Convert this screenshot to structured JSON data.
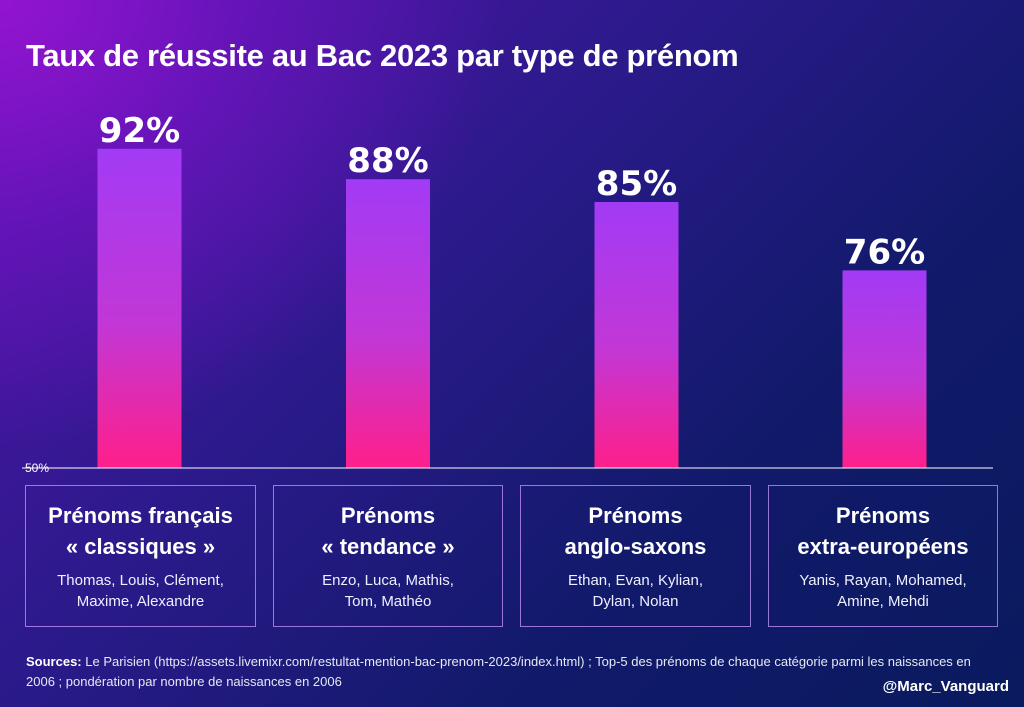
{
  "chart_data": {
    "type": "bar",
    "title": "Taux de réussite au Bac 2023 par type de prénom",
    "categories": [
      {
        "title_line1": "Prénoms français",
        "title_line2": "« classiques »",
        "names_line1": "Thomas, Louis, Clément,",
        "names_line2": "Maxime, Alexandre"
      },
      {
        "title_line1": "Prénoms",
        "title_line2": "« tendance »",
        "names_line1": "Enzo, Luca, Mathis,",
        "names_line2": "Tom, Mathéo"
      },
      {
        "title_line1": "Prénoms",
        "title_line2": "anglo-saxons",
        "names_line1": "Ethan, Evan, Kylian,",
        "names_line2": "Dylan, Nolan"
      },
      {
        "title_line1": "Prénoms",
        "title_line2": "extra-européens",
        "names_line1": "Yanis, Rayan, Mohamed,",
        "names_line2": "Amine, Mehdi"
      }
    ],
    "values": [
      92,
      88,
      85,
      76
    ],
    "value_labels": [
      "92%",
      "88%",
      "85%",
      "76%"
    ],
    "ylim": [
      50,
      100
    ],
    "baseline_label": "50%",
    "grid": false,
    "bar_gradient": {
      "top": "#a23bf5",
      "bottom": "#ff1f8a"
    }
  },
  "footer": {
    "sources_label": "Sources:",
    "sources_text": " Le Parisien (https://assets.livemixr.com/restultat-mention-bac-prenom-2023/index.html) ; Top-5 des prénoms de chaque catégorie parmi les naissances en 2006 ; pondération par nombre de naissances en 2006",
    "handle": "@Marc_Vanguard"
  }
}
